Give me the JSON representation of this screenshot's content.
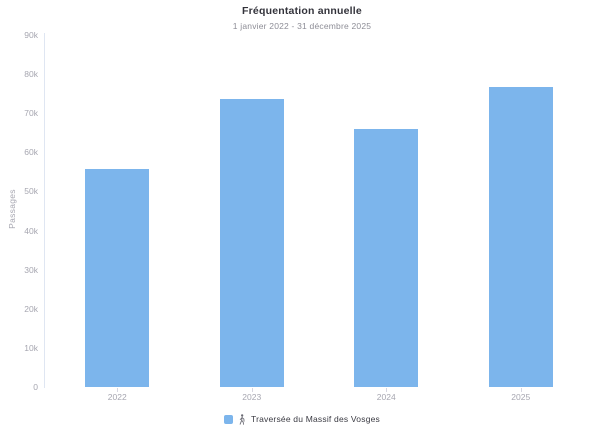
{
  "chart_data": {
    "type": "bar",
    "title": "Fréquentation annuelle",
    "subtitle": "1 janvier 2022 - 31 décembre 2025",
    "categories": [
      "2022",
      "2023",
      "2024",
      "2025"
    ],
    "series": [
      {
        "name": "Traversée du Massif des Vosges",
        "values": [
          55700,
          73700,
          66000,
          76600
        ],
        "color": "#7cb5ec"
      }
    ],
    "xlabel": "",
    "ylabel": "Passages",
    "ylim": [
      0,
      90000
    ],
    "yticks": [
      {
        "value": 0,
        "label": "0"
      },
      {
        "value": 10000,
        "label": "10k"
      },
      {
        "value": 20000,
        "label": "20k"
      },
      {
        "value": 30000,
        "label": "30k"
      },
      {
        "value": 40000,
        "label": "40k"
      },
      {
        "value": 50000,
        "label": "50k"
      },
      {
        "value": 60000,
        "label": "60k"
      },
      {
        "value": 70000,
        "label": "70k"
      },
      {
        "value": 80000,
        "label": "80k"
      },
      {
        "value": 90000,
        "label": "90k"
      }
    ],
    "grid": false,
    "legend_position": "bottom",
    "legend_icon": "hiker-icon",
    "colors": {
      "bar": "#7cb5ec",
      "axis_line": "#dfe6f2",
      "tick_text": "#a6a6b0",
      "title_text": "#33333b",
      "subtitle_text": "#8d8d96",
      "legend_text": "#3a3a42"
    }
  }
}
